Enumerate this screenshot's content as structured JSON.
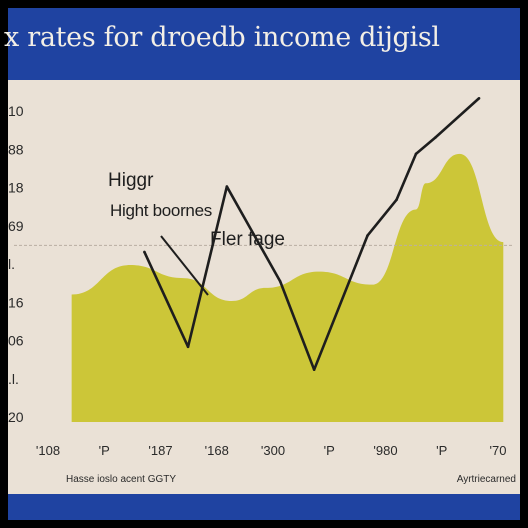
{
  "title": "x rates for droedb income dijgisl",
  "annotations": {
    "a1": "Higgr",
    "a2": "Hight boornes",
    "a3": "Fler fage"
  },
  "chart_data": {
    "type": "line",
    "title": "x rates for droedb income dijgisl",
    "xlabel_left": "Hasse ioslo acent GGTY",
    "xlabel_right": "Ayrtriecarned",
    "y_ticks": [
      "10",
      "88",
      "18",
      "69",
      "l.",
      "16",
      "06",
      ".l.",
      "20"
    ],
    "x_ticks": [
      "'108",
      "'P",
      "'187",
      "'168",
      "'300",
      "'P",
      "'980",
      "'P",
      "'70"
    ],
    "ylim": [
      0,
      100
    ],
    "xlim": [
      0,
      10
    ],
    "reference_line": 54,
    "grid": false,
    "series": [
      {
        "color": "#1e1e1e",
        "x": [
          2.4,
          3.3,
          4.1,
          5.2,
          5.9,
          7.0,
          7.6,
          8.0,
          8.4,
          9.3
        ],
        "y": [
          52,
          23,
          72,
          43,
          16,
          57,
          68,
          82,
          87,
          99
        ]
      }
    ],
    "areas": [
      {
        "color": "#c9c32a",
        "x": [
          0.9,
          2.1,
          3.2,
          4.2,
          4.9,
          6.0,
          7.1,
          8.0,
          8.2,
          8.9,
          9.8
        ],
        "y": [
          39,
          48,
          44,
          37,
          41,
          46,
          42,
          65,
          73,
          82,
          55
        ]
      }
    ]
  }
}
